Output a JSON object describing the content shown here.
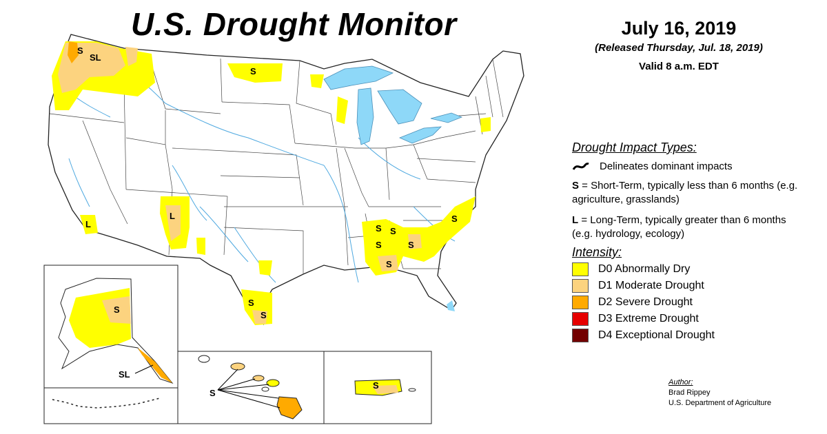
{
  "header": {
    "title": "U.S. Drought Monitor",
    "date": "July 16, 2019",
    "released": "(Released Thursday, Jul. 18, 2019)",
    "valid": "Valid 8 a.m. EDT"
  },
  "legend": {
    "impact_title": "Drought Impact Types:",
    "delineates": "Delineates dominant impacts",
    "short_term": {
      "letter": "S",
      "text": " = Short-Term, typically less than 6 months (e.g. agriculture, grasslands)"
    },
    "long_term": {
      "letter": "L",
      "text": " = Long-Term, typically greater than 6 months (e.g. hydrology, ecology)"
    },
    "intensity_title": "Intensity:",
    "categories": [
      {
        "label": "D0 Abnormally Dry",
        "color": "#ffff00"
      },
      {
        "label": "D1 Moderate Drought",
        "color": "#fcd37f"
      },
      {
        "label": "D2 Severe Drought",
        "color": "#ffaa00"
      },
      {
        "label": "D3 Extreme Drought",
        "color": "#e60000"
      },
      {
        "label": "D4 Exceptional Drought",
        "color": "#730000"
      }
    ]
  },
  "map": {
    "labels": {
      "wa": "SL",
      "mt": "S",
      "ca": "L",
      "nm": "L",
      "se1": "S",
      "se2": "S",
      "se3": "S",
      "se4": "S",
      "se5": "S",
      "nc": "S",
      "tx1": "S",
      "tx2": "S",
      "ak1": "S",
      "ak2": "SL",
      "hi": "S",
      "pr": "S"
    },
    "colors": {
      "water": "#8ed8f8",
      "d0": "#ffff00",
      "d1": "#fcd37f",
      "d2": "#ffaa00"
    }
  },
  "author": {
    "label": "Author:",
    "name": "Brad Rippey",
    "org": "U.S. Department of Agriculture"
  }
}
